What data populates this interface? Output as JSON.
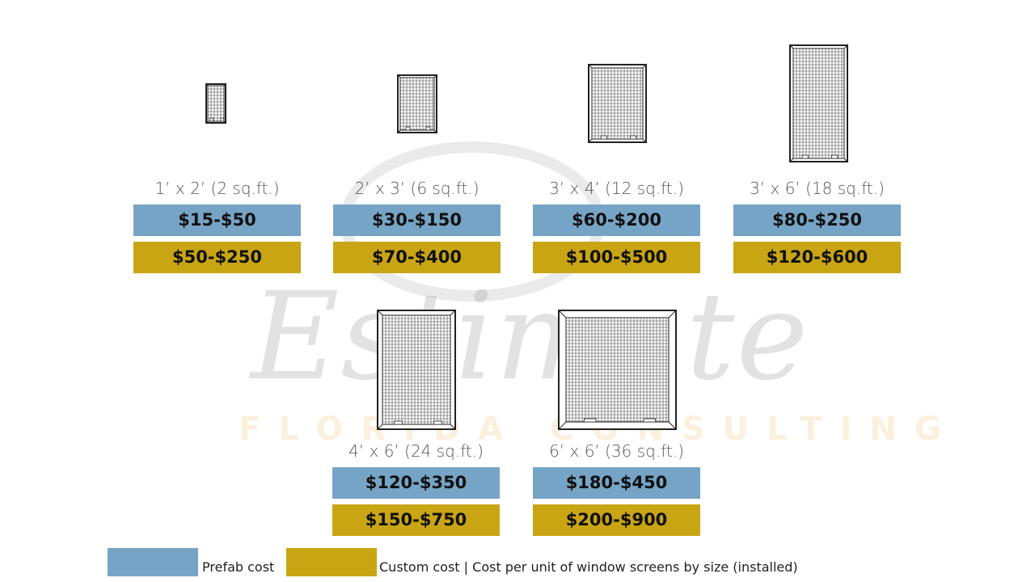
{
  "colors": {
    "prefab": "#76a4c6",
    "custom": "#c9a514"
  },
  "watermark": {
    "script": "Estimate",
    "subtitle": "FLORIDA CONSULTING"
  },
  "items": [
    {
      "size": "1’ x 2’ (2 sq.ft.)",
      "prefab": "$15-$50",
      "custom": "$50-$250",
      "icon": "window-screen-icon"
    },
    {
      "size": "2’ x 3’ (6 sq.ft.)",
      "prefab": "$30-$150",
      "custom": "$70-$400",
      "icon": "window-screen-icon"
    },
    {
      "size": "3’ x 4’ (12 sq.ft.)",
      "prefab": "$60-$200",
      "custom": "$100-$500",
      "icon": "window-screen-icon"
    },
    {
      "size": "3’ x 6’ (18 sq.ft.)",
      "prefab": "$80-$250",
      "custom": "$120-$600",
      "icon": "window-screen-icon"
    },
    {
      "size": "4’ x 6’ (24 sq.ft.)",
      "prefab": "$120-$350",
      "custom": "$150-$750",
      "icon": "window-screen-icon"
    },
    {
      "size": "6’ x 6’ (36 sq.ft.)",
      "prefab": "$180-$450",
      "custom": "$200-$900",
      "icon": "window-screen-icon"
    }
  ],
  "legend": {
    "prefab_label": "Prefab cost",
    "custom_label": "Custom cost | Cost per unit of window screens by size (installed)"
  }
}
